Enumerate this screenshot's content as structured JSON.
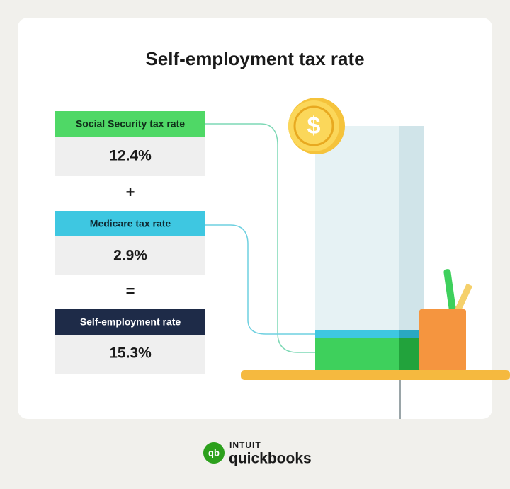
{
  "header": {
    "title": "Self-employment tax rate"
  },
  "steps": [
    {
      "label": "Social Security tax rate",
      "value": "12.4%"
    },
    {
      "label": "Medicare tax rate",
      "value": "2.9%"
    },
    {
      "label": "Self-employment rate",
      "value": "15.3%"
    }
  ],
  "operators": [
    "+",
    "="
  ],
  "illustration": {
    "coin_symbol": "$"
  },
  "logo": {
    "mark": "qb",
    "brand": "INTUIT",
    "product": "quickbooks"
  }
}
